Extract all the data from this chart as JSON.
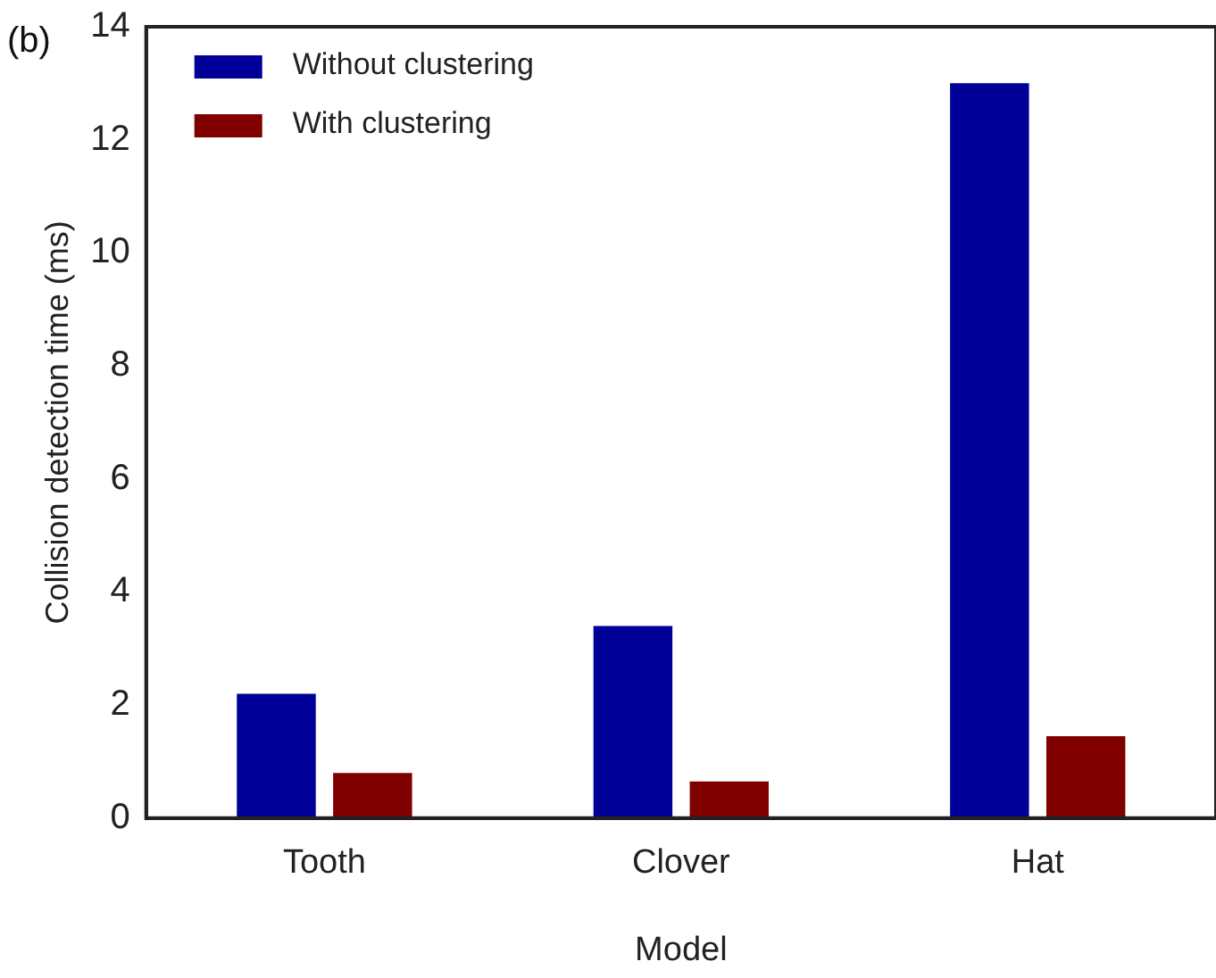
{
  "chart_data": {
    "type": "bar",
    "xlabel": "Model",
    "ylabel": "Collision detection time (ms)",
    "annotations": [
      "(b)"
    ],
    "categories": [
      "Tooth",
      "Clover",
      "Hat"
    ],
    "series": [
      {
        "name": "Without clustering",
        "color": "#000099",
        "values": [
          2.2,
          3.4,
          13
        ]
      },
      {
        "name": "With clustering",
        "color": "#800000",
        "values": [
          0.8,
          0.65,
          1.45
        ]
      }
    ],
    "ylim": [
      0,
      14
    ],
    "yticks": [
      0,
      2,
      4,
      6,
      8,
      10,
      12,
      14
    ],
    "legend": "top left"
  }
}
